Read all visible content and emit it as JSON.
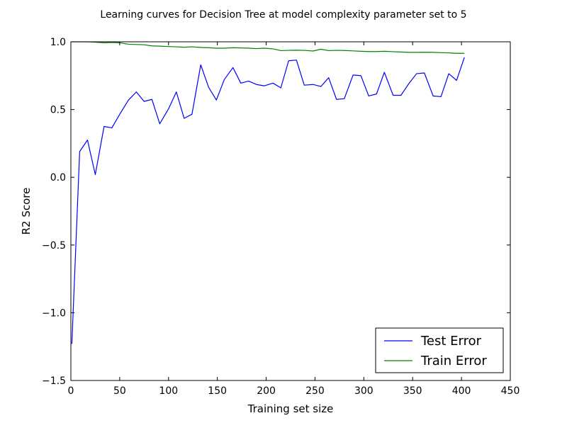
{
  "chart_data": {
    "type": "line",
    "title": "Learning curves for Decision Tree at model complexity parameter set to 5",
    "xlabel": "Training set size",
    "ylabel": "R2 Score",
    "xlim": [
      0,
      450
    ],
    "ylim": [
      -1.5,
      1.0
    ],
    "xticks": [
      0,
      50,
      100,
      150,
      200,
      250,
      300,
      350,
      400,
      450
    ],
    "xtick_labels": [
      "0",
      "50",
      "100",
      "150",
      "200",
      "250",
      "300",
      "350",
      "400",
      "450"
    ],
    "yticks": [
      -1.5,
      -1.0,
      -0.5,
      0.0,
      0.5,
      1.0
    ],
    "ytick_labels": [
      "−1.5",
      "−1.0",
      "−0.5",
      "0.0",
      "0.5",
      "1.0"
    ],
    "grid": false,
    "legend_position": "bottom-right",
    "x": [
      1,
      9,
      17,
      25,
      34,
      42,
      50,
      59,
      67,
      75,
      83,
      91,
      100,
      108,
      116,
      124,
      133,
      141,
      149,
      157,
      166,
      174,
      182,
      190,
      198,
      207,
      215,
      223,
      231,
      239,
      248,
      256,
      264,
      272,
      280,
      289,
      297,
      305,
      313,
      321,
      330,
      338,
      346,
      354,
      362,
      371,
      379,
      387,
      395,
      403
    ],
    "series": [
      {
        "name": "Test Error",
        "color": "#0000ff",
        "values": [
          -1.23,
          0.19,
          0.275,
          0.02,
          0.375,
          0.365,
          0.465,
          0.57,
          0.63,
          0.56,
          0.575,
          0.395,
          0.505,
          0.63,
          0.435,
          0.465,
          0.83,
          0.665,
          0.57,
          0.72,
          0.81,
          0.695,
          0.71,
          0.685,
          0.675,
          0.695,
          0.66,
          0.86,
          0.865,
          0.68,
          0.685,
          0.67,
          0.735,
          0.575,
          0.58,
          0.755,
          0.75,
          0.6,
          0.615,
          0.775,
          0.605,
          0.605,
          0.69,
          0.765,
          0.77,
          0.6,
          0.595,
          0.765,
          0.715,
          0.885
        ]
      },
      {
        "name": "Train Error",
        "color": "#008000",
        "values": [
          1.0,
          1.0,
          1.0,
          0.997,
          0.993,
          0.995,
          0.993,
          0.982,
          0.98,
          0.978,
          0.97,
          0.968,
          0.965,
          0.963,
          0.96,
          0.963,
          0.958,
          0.956,
          0.953,
          0.953,
          0.956,
          0.955,
          0.953,
          0.95,
          0.953,
          0.948,
          0.935,
          0.937,
          0.938,
          0.937,
          0.932,
          0.945,
          0.935,
          0.937,
          0.936,
          0.933,
          0.93,
          0.928,
          0.928,
          0.93,
          0.927,
          0.925,
          0.922,
          0.922,
          0.923,
          0.922,
          0.92,
          0.918,
          0.915,
          0.915
        ]
      }
    ]
  }
}
